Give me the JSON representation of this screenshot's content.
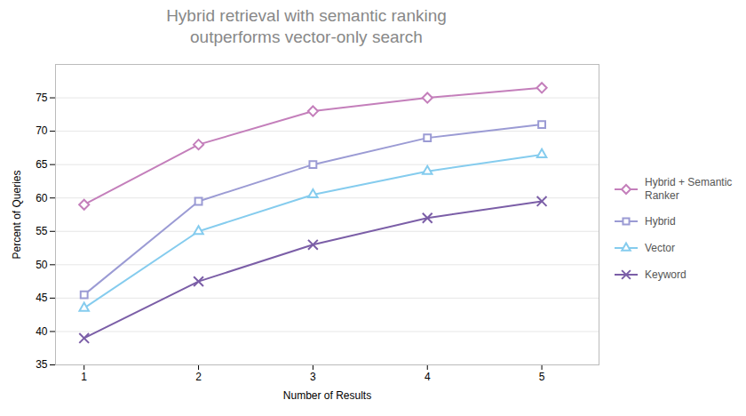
{
  "chart_data": {
    "type": "line",
    "title": "Hybrid retrieval with semantic ranking\noutperforms vector-only search",
    "x_label": "Number of Results",
    "y_label": "Percent of Queries",
    "x": [
      1,
      2,
      3,
      4,
      5
    ],
    "series": [
      {
        "name": "Hybrid + Semantic\nRanker",
        "color": "#C47FBB",
        "marker": "diamond",
        "values": [
          59,
          68,
          73,
          75,
          76.5
        ]
      },
      {
        "name": "Hybrid",
        "color": "#9B9BD4",
        "marker": "square",
        "values": [
          45.5,
          59.5,
          65,
          69,
          71
        ]
      },
      {
        "name": "Vector",
        "color": "#85CCEE",
        "marker": "triangle",
        "values": [
          43.5,
          55,
          60.5,
          64,
          66.5
        ]
      },
      {
        "name": "Keyword",
        "color": "#7B5EA7",
        "marker": "x",
        "values": [
          39,
          47.5,
          53,
          57,
          59.5
        ]
      }
    ],
    "xlim": [
      0.75,
      5.5
    ],
    "xticks": [
      1,
      2,
      3,
      4,
      5
    ],
    "ylim": [
      35,
      80
    ],
    "yticks": [
      35,
      40,
      45,
      50,
      55,
      60,
      65,
      70,
      75
    ],
    "grid": true,
    "legend": "right"
  }
}
